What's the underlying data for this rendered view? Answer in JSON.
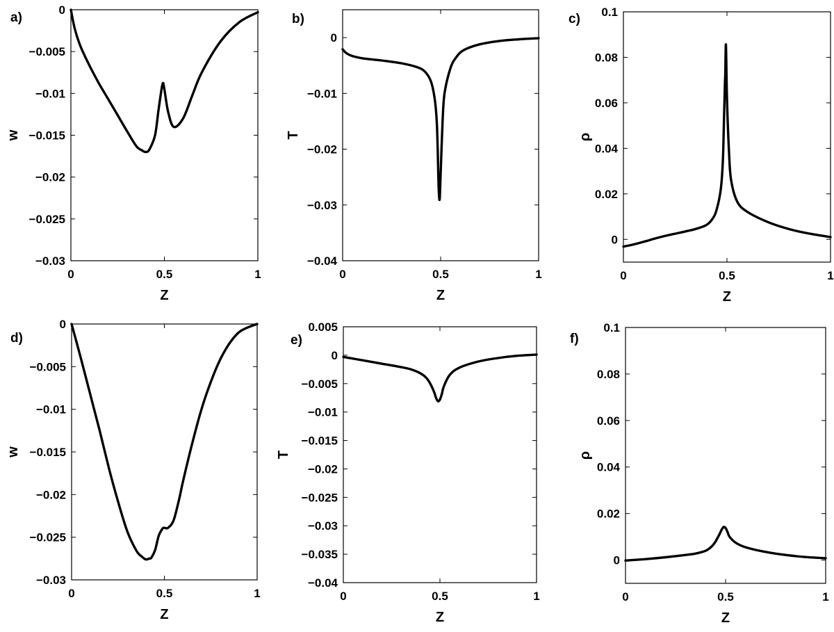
{
  "chart_data": [
    {
      "panel": "a)",
      "type": "line",
      "xlabel": "Z",
      "ylabel": "w",
      "xlim": [
        0,
        1
      ],
      "ylim": [
        -0.03,
        0
      ],
      "xticks": [
        "0",
        "0.5",
        "1"
      ],
      "yticks": [
        "0",
        "−0.005",
        "−0.01",
        "−0.015",
        "−0.02",
        "−0.025",
        "−0.03"
      ],
      "grid": false,
      "x": [
        0,
        0.02,
        0.05,
        0.1,
        0.15,
        0.2,
        0.25,
        0.3,
        0.35,
        0.38,
        0.4,
        0.42,
        0.45,
        0.47,
        0.49,
        0.5,
        0.52,
        0.55,
        0.6,
        0.65,
        0.7,
        0.8,
        0.9,
        1.0
      ],
      "y": [
        0,
        -0.0022,
        -0.0043,
        -0.0067,
        -0.0088,
        -0.0107,
        -0.0126,
        -0.0145,
        -0.0163,
        -0.0168,
        -0.017,
        -0.0167,
        -0.015,
        -0.0118,
        -0.0089,
        -0.0095,
        -0.0122,
        -0.014,
        -0.013,
        -0.0102,
        -0.0075,
        -0.0038,
        -0.0015,
        -0.0003
      ]
    },
    {
      "panel": "b)",
      "type": "line",
      "xlabel": "Z",
      "ylabel": "T",
      "xlim": [
        0,
        1
      ],
      "ylim": [
        -0.04,
        0.005
      ],
      "xticks": [
        "0",
        "0.5",
        "1"
      ],
      "yticks": [
        "0",
        "−0.01",
        "−0.02",
        "−0.03",
        "−0.04"
      ],
      "grid": false,
      "x": [
        0,
        0.02,
        0.05,
        0.1,
        0.2,
        0.3,
        0.38,
        0.42,
        0.45,
        0.47,
        0.48,
        0.485,
        0.49,
        0.495,
        0.5,
        0.51,
        0.52,
        0.55,
        0.58,
        0.62,
        0.7,
        0.8,
        0.9,
        1.0
      ],
      "y": [
        -0.0021,
        -0.0028,
        -0.0033,
        -0.0037,
        -0.0041,
        -0.0046,
        -0.0053,
        -0.0061,
        -0.0078,
        -0.011,
        -0.015,
        -0.02,
        -0.027,
        -0.029,
        -0.0245,
        -0.015,
        -0.01,
        -0.0055,
        -0.0035,
        -0.0022,
        -0.0012,
        -0.0006,
        -0.0003,
        -0.0001
      ]
    },
    {
      "panel": "c)",
      "type": "line",
      "xlabel": "Z",
      "ylabel": "ρ",
      "xlim": [
        0,
        1
      ],
      "ylim": [
        -0.01,
        0.1
      ],
      "xticks": [
        "0",
        "0.5",
        "1"
      ],
      "yticks": [
        "0",
        "0.02",
        "0.04",
        "0.06",
        "0.08",
        "0.1"
      ],
      "grid": false,
      "x": [
        0,
        0.05,
        0.1,
        0.15,
        0.2,
        0.25,
        0.3,
        0.35,
        0.4,
        0.43,
        0.45,
        0.47,
        0.48,
        0.485,
        0.49,
        0.492,
        0.495,
        0.5,
        0.51,
        0.52,
        0.55,
        0.6,
        0.7,
        0.8,
        0.9,
        1.0
      ],
      "y": [
        -0.0032,
        -0.0022,
        -0.001,
        0.0003,
        0.0015,
        0.0025,
        0.0035,
        0.0046,
        0.0063,
        0.009,
        0.013,
        0.022,
        0.034,
        0.05,
        0.068,
        0.073,
        0.0855,
        0.062,
        0.038,
        0.026,
        0.0165,
        0.012,
        0.0075,
        0.0045,
        0.0025,
        0.001
      ]
    },
    {
      "panel": "d)",
      "type": "line",
      "xlabel": "Z",
      "ylabel": "w",
      "xlim": [
        0,
        1
      ],
      "ylim": [
        -0.03,
        0
      ],
      "xticks": [
        "0",
        "0.5",
        "1"
      ],
      "yticks": [
        "0",
        "−0.005",
        "−0.01",
        "−0.015",
        "−0.02",
        "−0.025",
        "−0.03"
      ],
      "grid": false,
      "x": [
        0,
        0.05,
        0.1,
        0.15,
        0.2,
        0.25,
        0.3,
        0.35,
        0.38,
        0.4,
        0.42,
        0.43,
        0.45,
        0.47,
        0.49,
        0.5,
        0.52,
        0.55,
        0.58,
        0.6,
        0.65,
        0.7,
        0.75,
        0.8,
        0.85,
        0.9,
        0.95,
        1.0
      ],
      "y": [
        0,
        -0.004,
        -0.0082,
        -0.0124,
        -0.0168,
        -0.0208,
        -0.0243,
        -0.0266,
        -0.0273,
        -0.0276,
        -0.0275,
        -0.0274,
        -0.0265,
        -0.0248,
        -0.024,
        -0.0239,
        -0.0239,
        -0.023,
        -0.0205,
        -0.0185,
        -0.014,
        -0.01,
        -0.0068,
        -0.0042,
        -0.0023,
        -0.001,
        -0.0004,
        0
      ]
    },
    {
      "panel": "e)",
      "type": "line",
      "xlabel": "Z",
      "ylabel": "T",
      "xlim": [
        0,
        1
      ],
      "ylim": [
        -0.04,
        0.005
      ],
      "xticks": [
        "0",
        "0.5",
        "1"
      ],
      "yticks": [
        "0.005",
        "0",
        "−0.005",
        "−0.01",
        "−0.015",
        "−0.02",
        "−0.025",
        "−0.03",
        "−0.035",
        "−0.04"
      ],
      "grid": false,
      "x": [
        0,
        0.05,
        0.1,
        0.2,
        0.3,
        0.35,
        0.4,
        0.43,
        0.45,
        0.47,
        0.48,
        0.49,
        0.5,
        0.51,
        0.52,
        0.55,
        0.6,
        0.7,
        0.8,
        0.9,
        1.0
      ],
      "y": [
        -0.0003,
        -0.0006,
        -0.0009,
        -0.0015,
        -0.0021,
        -0.0025,
        -0.0032,
        -0.004,
        -0.005,
        -0.0065,
        -0.0075,
        -0.0081,
        -0.0078,
        -0.0068,
        -0.0055,
        -0.0035,
        -0.0022,
        -0.0011,
        -0.0005,
        -0.0001,
        0.0001
      ]
    },
    {
      "panel": "f)",
      "type": "line",
      "xlabel": "Z",
      "ylabel": "ρ",
      "xlim": [
        0,
        1
      ],
      "ylim": [
        -0.01,
        0.1
      ],
      "xticks": [
        "0",
        "0.5",
        "1"
      ],
      "yticks": [
        "0",
        "0.02",
        "0.04",
        "0.06",
        "0.08",
        "0.1"
      ],
      "grid": false,
      "x": [
        0,
        0.1,
        0.2,
        0.3,
        0.35,
        0.4,
        0.43,
        0.45,
        0.47,
        0.48,
        0.49,
        0.5,
        0.51,
        0.52,
        0.55,
        0.6,
        0.7,
        0.8,
        0.9,
        1.0
      ],
      "y": [
        -0.0002,
        0.0004,
        0.0012,
        0.0022,
        0.0028,
        0.004,
        0.0058,
        0.008,
        0.0112,
        0.013,
        0.0142,
        0.0138,
        0.012,
        0.01,
        0.0075,
        0.0055,
        0.0035,
        0.0022,
        0.0013,
        0.0008
      ]
    }
  ]
}
